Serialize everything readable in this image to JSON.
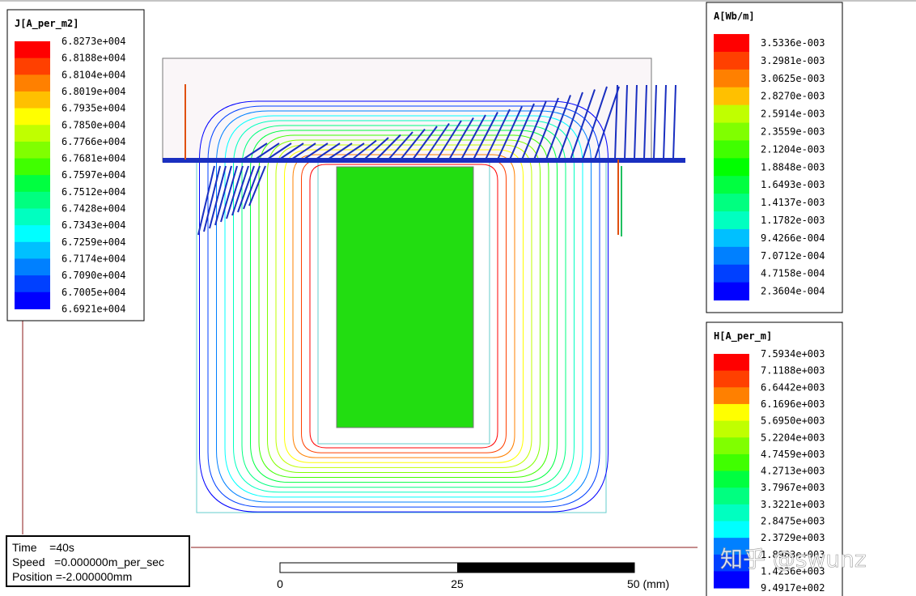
{
  "legends": [
    {
      "title": "J[A_per_m2]",
      "labels": [
        "6.8273e+004",
        "6.8188e+004",
        "6.8104e+004",
        "6.8019e+004",
        "6.7935e+004",
        "6.7850e+004",
        "6.7766e+004",
        "6.7681e+004",
        "6.7597e+004",
        "6.7512e+004",
        "6.7428e+004",
        "6.7343e+004",
        "6.7259e+004",
        "6.7174e+004",
        "6.7090e+004",
        "6.7005e+004",
        "6.6921e+004"
      ]
    },
    {
      "title": "A[Wb/m]",
      "labels": [
        "3.5336e-003",
        "3.2981e-003",
        "3.0625e-003",
        "2.8270e-003",
        "2.5914e-003",
        "2.3559e-003",
        "2.1204e-003",
        "1.8848e-003",
        "1.6493e-003",
        "1.4137e-003",
        "1.1782e-003",
        "9.4266e-004",
        "7.0712e-004",
        "4.7158e-004",
        "2.3604e-004"
      ]
    },
    {
      "title": "H[A_per_m]",
      "labels": [
        "7.5934e+003",
        "7.1188e+003",
        "6.6442e+003",
        "6.1696e+003",
        "5.6950e+003",
        "5.2204e+003",
        "4.7459e+003",
        "4.2713e+003",
        "3.7967e+003",
        "3.3221e+003",
        "2.8475e+003",
        "2.3729e+003",
        "1.8983e+003",
        "1.4236e+003",
        "9.4917e+002"
      ]
    }
  ],
  "info": [
    "Time    =40s",
    "Speed   =0.000000m_per_sec",
    "Position =-2.000000mm"
  ],
  "scale": [
    "0",
    "25",
    "50 (mm)"
  ],
  "watermark": "知乎 @swunz"
}
